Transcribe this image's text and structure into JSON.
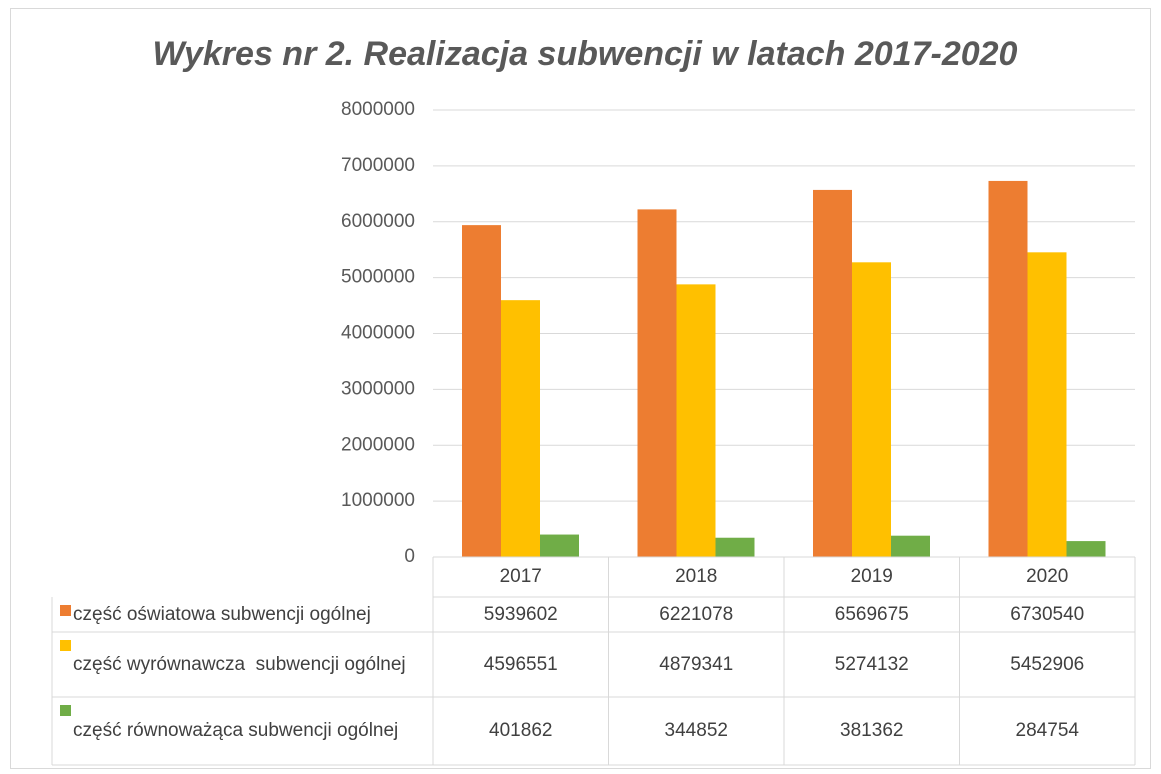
{
  "chart_data": {
    "type": "bar",
    "title": "Wykres nr 2. Realizacja subwencji w latach 2017-2020",
    "categories": [
      "2017",
      "2018",
      "2019",
      "2020"
    ],
    "series": [
      {
        "name": "część oświatowa subwencji ogólnej",
        "color": "#ed7d31",
        "values": [
          5939602,
          6221078,
          6569675,
          6730540
        ]
      },
      {
        "name": "część wyrównawcza  subwencji ogólnej",
        "color": "#ffc000",
        "values": [
          4596551,
          4879341,
          5274132,
          5452906
        ]
      },
      {
        "name": "część równoważąca subwencji ogólnej",
        "color": "#70ad47",
        "values": [
          401862,
          344852,
          381362,
          284754
        ]
      }
    ],
    "ylim": [
      0,
      8000000
    ],
    "yticks": [
      0,
      1000000,
      2000000,
      3000000,
      4000000,
      5000000,
      6000000,
      7000000,
      8000000
    ],
    "grid": true,
    "legend": "data-table"
  }
}
